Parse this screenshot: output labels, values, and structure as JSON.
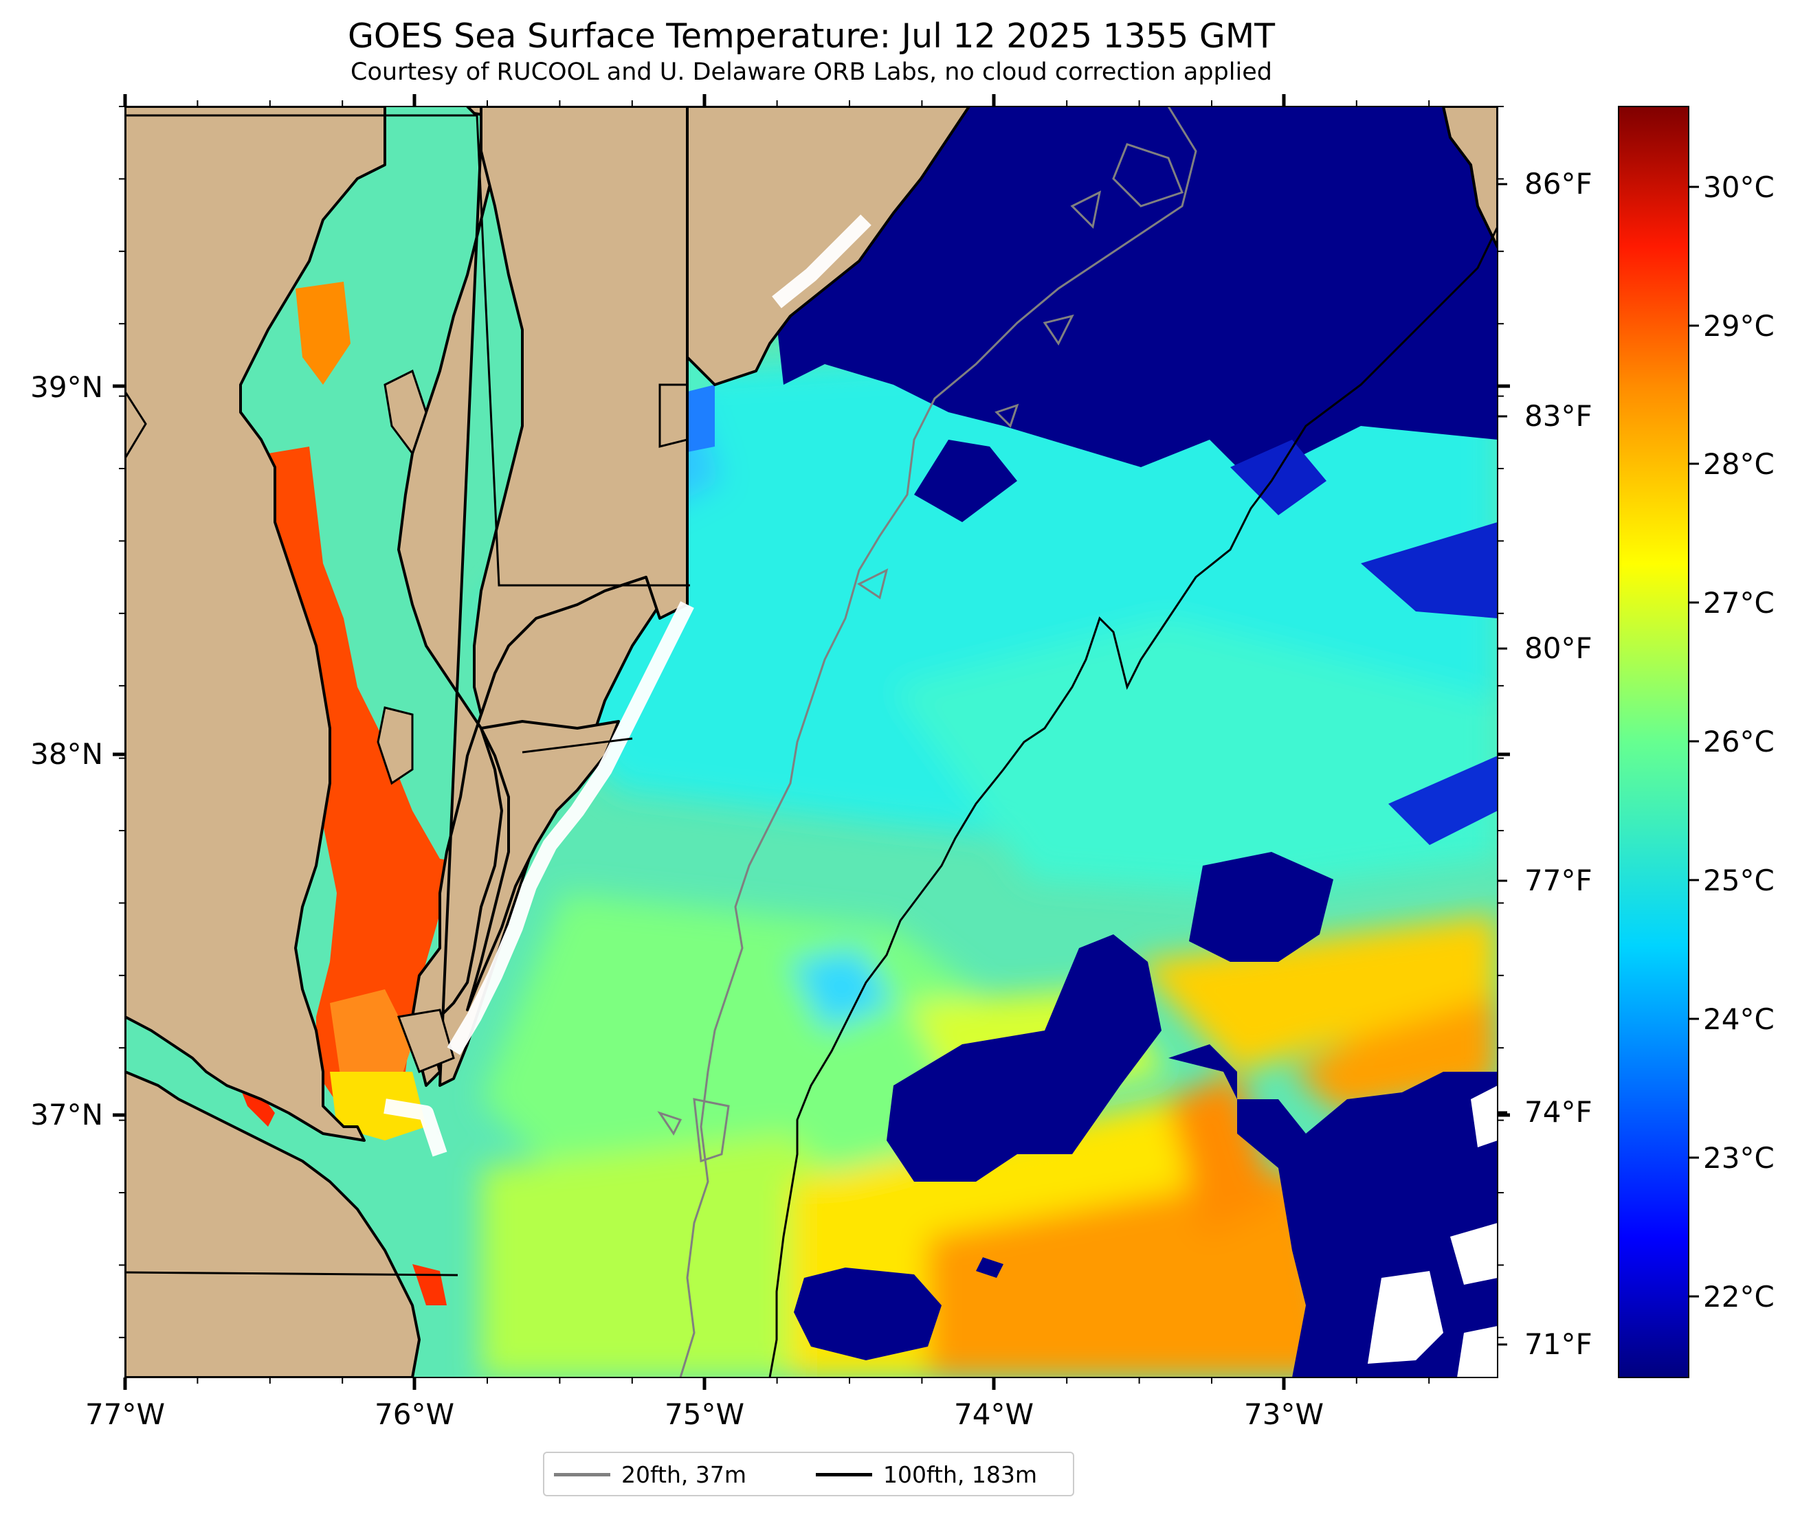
{
  "map": {
    "title": "GOES Sea Surface Temperature: Jul 12 2025 1355 GMT",
    "subtitle": "Courtesy of RUCOOL and U. Delaware ORB Labs, no cloud correction applied",
    "lon_labels": [
      "77°W",
      "76°W",
      "75°W",
      "74°W",
      "73°W"
    ],
    "lat_labels": [
      "39°N",
      "38°N",
      "37°N"
    ],
    "fahrenheit_labels": [
      "86°F",
      "83°F",
      "80°F",
      "77°F",
      "74°F",
      "71°F"
    ],
    "celsius_labels": [
      "30°C",
      "29°C",
      "28°C",
      "27°C",
      "26°C",
      "25°C",
      "24°C",
      "23°C",
      "22°C"
    ],
    "legend": [
      {
        "label": "20fth, 37m",
        "color": "#808080"
      },
      {
        "label": "100fth, 183m",
        "color": "#000000"
      }
    ],
    "extent": {
      "lon_min": -77.0,
      "lon_max": -72.27,
      "lat_min": 36.3,
      "lat_max": 39.78
    },
    "colorbar_range_c": [
      21.5,
      30.5
    ],
    "land_color": "#d2b48c",
    "ocean_cold_color": "#00008b"
  }
}
